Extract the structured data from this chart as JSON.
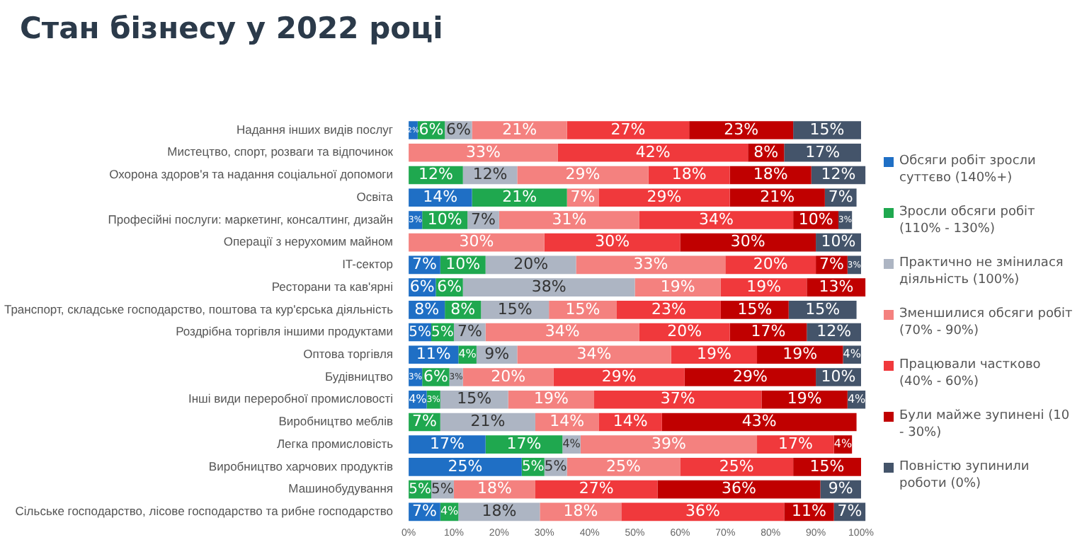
{
  "chart_data": {
    "type": "bar",
    "orientation": "horizontal",
    "stacked": true,
    "title": "Стан бізнесу у 2022 році",
    "categories": [
      "Надання інших видів послуг",
      "Мистецтво, спорт, розваги та відпочинок",
      "Охорона здоров'я та надання соціальної допомоги",
      "Освіта",
      "Професійні послуги: маркетинг, консалтинг, дизайн",
      "Операції з нерухомим майном",
      "IT-сектор",
      "Ресторани та кав'ярні",
      "Транспорт, складське господарство, поштова та кур'єрська діяльність",
      "Роздрібна торгівля іншими продуктами",
      "Оптова торгівля",
      "Будівництво",
      "Інші види переробної промисловості",
      "Виробництво меблів",
      "Легка промисловість",
      "Виробництво харчових продуктів",
      "Машинобудування",
      "Сільське господарство, лісове господарство та рибне господарство"
    ],
    "series": [
      {
        "name": "Обсяги робіт зросли суттєво (140%+)",
        "color": "#1f6fc5",
        "values": [
          2,
          null,
          null,
          14,
          3,
          null,
          7,
          6,
          8,
          5,
          11,
          3,
          4,
          null,
          17,
          25,
          null,
          7
        ],
        "value_labels": [
          "2%",
          null,
          null,
          "14%",
          "3%",
          null,
          "7%",
          "6%",
          "8%",
          "5%",
          "11%",
          "3%",
          "4%",
          null,
          "17%",
          "25%",
          null,
          "7%"
        ]
      },
      {
        "name": "Зросли обсяги робіт (110% - 130%)",
        "color": "#1fa84f",
        "values": [
          6,
          null,
          12,
          21,
          10,
          null,
          10,
          6,
          8,
          5,
          4,
          6,
          3,
          7,
          17,
          5,
          5,
          4
        ],
        "value_labels": [
          "6%",
          null,
          "12%",
          "21%",
          "10%",
          null,
          "10%",
          "6%",
          "8%",
          "5%",
          "4%",
          "6%",
          "3%",
          "7%",
          "17%",
          "5%",
          "5%",
          "4%"
        ]
      },
      {
        "name": "Практично не змінилася діяльність (100%)",
        "color": "#adb5c3",
        "values": [
          6,
          null,
          12,
          null,
          7,
          null,
          20,
          38,
          15,
          7,
          9,
          3,
          15,
          21,
          4,
          5,
          5,
          18
        ],
        "value_labels": [
          "6%",
          null,
          "12%",
          null,
          "7%",
          null,
          "20%",
          "38%",
          "15%",
          "7%",
          "9%",
          "3%",
          "15%",
          "21%",
          "4%",
          "5%",
          "5%",
          "18%"
        ]
      },
      {
        "name": "Зменшилися обсяги робіт (70% - 90%)",
        "color": "#f4817f",
        "values": [
          21,
          33,
          29,
          7,
          31,
          30,
          33,
          19,
          15,
          34,
          34,
          20,
          19,
          14,
          39,
          25,
          18,
          18
        ],
        "value_labels": [
          "21%",
          "33%",
          "29%",
          "7%",
          "31%",
          "30%",
          "33%",
          "19%",
          "15%",
          "34%",
          "34%",
          "20%",
          "19%",
          "14%",
          "39%",
          "25%",
          "18%",
          "18%"
        ]
      },
      {
        "name": "Працювали частково (40% - 60%)",
        "color": "#f0393c",
        "values": [
          27,
          42,
          18,
          29,
          34,
          30,
          20,
          19,
          23,
          20,
          19,
          29,
          37,
          14,
          17,
          25,
          27,
          36
        ],
        "value_labels": [
          "27%",
          "42%",
          "18%",
          "29%",
          "34%",
          "30%",
          "20%",
          "19%",
          "23%",
          "20%",
          "19%",
          "29%",
          "37%",
          "14%",
          "17%",
          "25%",
          "27%",
          "36%"
        ]
      },
      {
        "name": "Були майже зупинені (10 - 30%)",
        "color": "#c00000",
        "values": [
          23,
          8,
          18,
          21,
          10,
          30,
          7,
          13,
          15,
          17,
          19,
          29,
          19,
          43,
          4,
          15,
          36,
          11
        ],
        "value_labels": [
          "23%",
          "8%",
          "18%",
          "21%",
          "10%",
          "30%",
          "7%",
          "13%",
          "15%",
          "17%",
          "19%",
          "29%",
          "19%",
          "43%",
          "4%",
          "15%",
          "36%",
          "11%"
        ]
      },
      {
        "name": "Повністю зупинили роботи (0%)",
        "color": "#44546a",
        "values": [
          15,
          17,
          12,
          7,
          3,
          10,
          3,
          null,
          15,
          12,
          4,
          10,
          4,
          null,
          null,
          null,
          9,
          7
        ],
        "value_labels": [
          "15%",
          "17%",
          "12%",
          "7%",
          "3%",
          "10%",
          "3%",
          null,
          "15%",
          "12%",
          "4%",
          "10%",
          "4%",
          null,
          null,
          null,
          "9%",
          "7%"
        ]
      }
    ],
    "xlim": [
      0,
      101
    ],
    "xticks": [
      {
        "value": 0,
        "label": "0%"
      },
      {
        "value": 10,
        "label": "10%"
      },
      {
        "value": 20,
        "label": "20%"
      },
      {
        "value": 30,
        "label": "30%"
      },
      {
        "value": 40,
        "label": "40%"
      },
      {
        "value": 50,
        "label": "50%"
      },
      {
        "value": 60,
        "label": "60%"
      },
      {
        "value": 70,
        "label": "70%"
      },
      {
        "value": 80,
        "label": "80%"
      },
      {
        "value": 90,
        "label": "90%"
      },
      {
        "value": 100,
        "label": "100%"
      }
    ],
    "legend": "right",
    "grid": false
  }
}
